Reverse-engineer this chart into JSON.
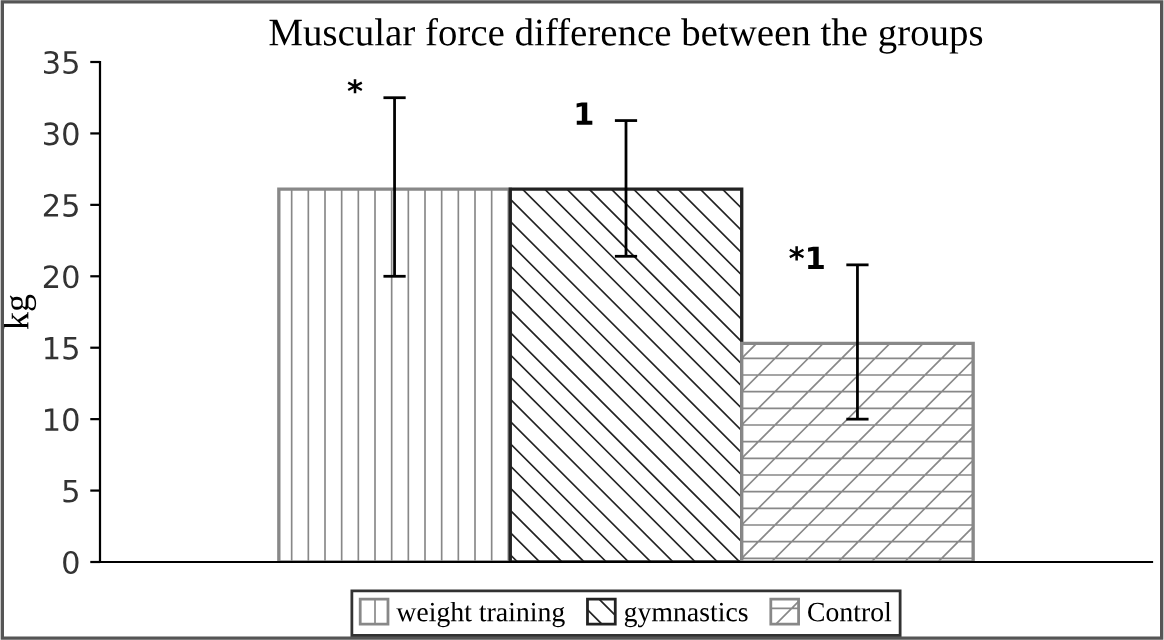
{
  "chart_data": {
    "type": "bar",
    "title": "Muscular force difference between the groups",
    "ylabel": "kg",
    "categories": [
      null
    ],
    "series": [
      {
        "name": "weight training",
        "color": "#888888",
        "values": [
          26.1
        ],
        "errors": [
          [
            20.0,
            32.5
          ]
        ]
      },
      {
        "name": "gymnastics",
        "color": "#222222",
        "values": [
          26.1
        ],
        "errors": [
          [
            21.4,
            30.9
          ]
        ]
      },
      {
        "name": "Control",
        "color": "#888888",
        "values": [
          15.3
        ],
        "errors": [
          [
            10.0,
            20.8
          ]
        ]
      }
    ],
    "annotations": [
      "*",
      "1",
      "*1"
    ],
    "ylim": [
      0,
      35
    ],
    "yticks": [
      0,
      5,
      10,
      15,
      20,
      25,
      30,
      35
    ],
    "tick_labels": "y",
    "grid": false,
    "legend": "bottom"
  }
}
